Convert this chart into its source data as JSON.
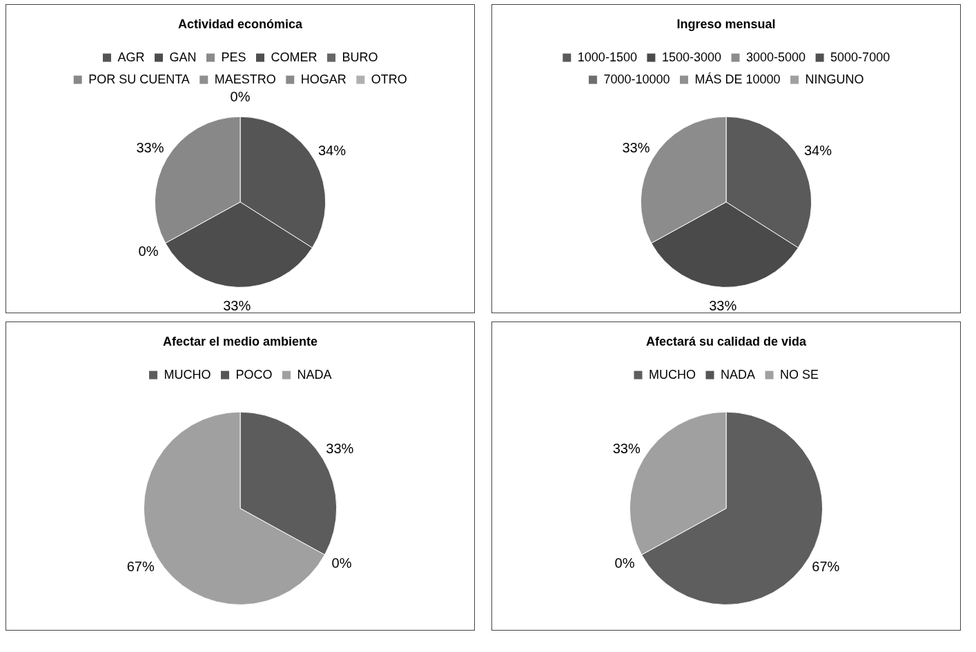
{
  "chart_data": [
    {
      "type": "pie",
      "title": "Actividad económica",
      "categories": [
        "AGR",
        "GAN",
        "PES",
        "COMER",
        "BURO",
        "POR SU CUENTA",
        "MAESTRO",
        "HOGAR",
        "OTRO"
      ],
      "values": [
        34,
        33,
        0,
        0,
        0,
        33,
        0,
        0,
        0
      ],
      "value_labels": [
        "34%",
        "33%",
        "0%",
        null,
        null,
        "33%",
        null,
        null,
        "0%"
      ],
      "colors": [
        "#555555",
        "#4d4d4d",
        "#8a8a8a",
        "#4f4f4f",
        "#666666",
        "#888888",
        "#8f8f8f",
        "#8a8a8a",
        "#b0b0b0"
      ],
      "legend": "top"
    },
    {
      "type": "pie",
      "title": "Ingreso mensual",
      "categories": [
        "1000-1500",
        "1500-3000",
        "3000-5000",
        "5000-7000",
        "7000-10000",
        "MÁS DE 10000",
        "NINGUNO"
      ],
      "values": [
        34,
        33,
        33,
        0,
        0,
        0,
        0
      ],
      "value_labels": [
        "34%",
        "33%",
        "33%",
        null,
        null,
        null,
        null
      ],
      "colors": [
        "#5a5a5a",
        "#4a4a4a",
        "#8c8c8c",
        "#505050",
        "#6e6e6e",
        "#909090",
        "#a0a0a0"
      ],
      "legend": "top"
    },
    {
      "type": "pie",
      "title": "Afectar el medio ambiente",
      "categories": [
        "MUCHO",
        "POCO",
        "NADA"
      ],
      "values": [
        33,
        0,
        67
      ],
      "value_labels": [
        "33%",
        "0%",
        "67%"
      ],
      "colors": [
        "#5c5c5c",
        "#555555",
        "#a0a0a0"
      ],
      "legend": "top"
    },
    {
      "type": "pie",
      "title": "Afectará su calidad de vida",
      "categories": [
        "MUCHO",
        "NADA",
        "NO SE"
      ],
      "values": [
        67,
        0,
        33
      ],
      "value_labels": [
        "67%",
        "0%",
        "33%"
      ],
      "colors": [
        "#5e5e5e",
        "#555555",
        "#a0a0a0"
      ],
      "legend": "top"
    }
  ]
}
